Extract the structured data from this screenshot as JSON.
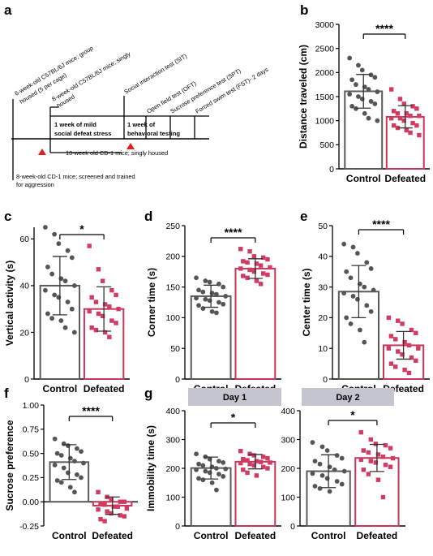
{
  "panels": {
    "a": "a",
    "b": "b",
    "c": "c",
    "d": "d",
    "e": "e",
    "f": "f",
    "g": "g"
  },
  "colors": {
    "control": "#5a5a5a",
    "defeated": "#c8375a",
    "control_dot": "#555555",
    "defeated_dot": "#d13b61",
    "day_box": "#c5c5cf",
    "marker": "#e02020"
  },
  "timeline": {
    "labels": [
      "6-week-old C57BL/6J mice; group",
      "housed (5 per cage)",
      "8-week-old C57BL/6J mice; singly",
      "housed",
      "Social interaction test (SIT)",
      "Open field test (OFT)",
      "Sucrose preference test (SPT)",
      "Forced swim test (FST)- 2 days"
    ],
    "box1": [
      "1 week of mild",
      "social defeat stress"
    ],
    "box2": [
      "1 week of",
      "behavioral testing"
    ],
    "note1": "10-week old CD-1 mice; singly housed",
    "note2": [
      "8-week-old CD-1 mice; screened and trained",
      "for aggression"
    ]
  },
  "chart_data": [
    {
      "panel": "b",
      "type": "bar",
      "categories": [
        "Control",
        "Defeated"
      ],
      "ylabel": "Distance traveled (cm)",
      "ylim": [
        0,
        3000
      ],
      "yticks": [
        0,
        500,
        1000,
        1500,
        2000,
        2500,
        3000
      ],
      "values": [
        1610,
        1080
      ],
      "error": [
        350,
        230
      ],
      "significance": "****",
      "points": [
        [
          2300,
          2150,
          2050,
          1950,
          1900,
          1850,
          1750,
          1700,
          1650,
          1600,
          1550,
          1500,
          1450,
          1400,
          1350,
          1300,
          1250,
          1150,
          1050,
          1000
        ],
        [
          1650,
          1450,
          1350,
          1300,
          1250,
          1200,
          1150,
          1150,
          1100,
          1100,
          1050,
          1050,
          1000,
          950,
          900,
          900,
          850,
          800,
          750,
          700
        ]
      ]
    },
    {
      "panel": "c",
      "type": "bar",
      "categories": [
        "Control",
        "Defeated"
      ],
      "ylabel": "Vertical activity (s)",
      "ylim": [
        0,
        65
      ],
      "yticks": [
        0,
        20,
        40,
        60
      ],
      "values": [
        40,
        30
      ],
      "error": [
        12.5,
        9.5
      ],
      "significance": "*",
      "points": [
        [
          65,
          62,
          58,
          55,
          52,
          48,
          45,
          43,
          42,
          40,
          38,
          36,
          35,
          33,
          30,
          28,
          26,
          25,
          22,
          20
        ],
        [
          57,
          47,
          42,
          38,
          36,
          35,
          33,
          32,
          31,
          30,
          29,
          28,
          27,
          25,
          24,
          22,
          21,
          20,
          18
        ]
      ]
    },
    {
      "panel": "d",
      "type": "bar",
      "categories": [
        "Control",
        "Defeated"
      ],
      "ylabel": "Corner time (s)",
      "ylim": [
        0,
        250
      ],
      "yticks": [
        0,
        50,
        100,
        150,
        200,
        250
      ],
      "values": [
        135,
        180
      ],
      "error": [
        18,
        16
      ],
      "significance": "****",
      "points": [
        [
          165,
          160,
          158,
          155,
          150,
          145,
          142,
          140,
          138,
          135,
          132,
          130,
          128,
          125,
          122,
          120,
          115,
          110,
          108
        ],
        [
          212,
          208,
          200,
          198,
          195,
          192,
          190,
          188,
          185,
          182,
          180,
          178,
          175,
          172,
          170,
          168,
          165,
          160,
          155
        ]
      ]
    },
    {
      "panel": "e",
      "type": "bar",
      "categories": [
        "Control",
        "Defeated"
      ],
      "ylabel": "Center time (s)",
      "ylim": [
        0,
        50
      ],
      "yticks": [
        0,
        10,
        20,
        30,
        40,
        50
      ],
      "values": [
        28.5,
        11
      ],
      "error": [
        8.5,
        4.5
      ],
      "significance": "****",
      "points": [
        [
          44,
          43,
          41,
          38,
          36,
          35,
          33,
          31,
          30,
          29,
          28,
          27,
          26,
          24,
          22,
          20,
          18,
          16,
          12
        ],
        [
          20,
          19,
          18,
          16,
          15,
          14,
          13,
          12,
          11,
          10,
          10,
          9,
          8,
          7,
          6,
          5,
          4,
          3,
          2
        ]
      ]
    },
    {
      "panel": "f",
      "type": "bar",
      "categories": [
        "Control",
        "Defeated"
      ],
      "ylabel": "Sucrose preference",
      "ylim": [
        -0.25,
        1.0
      ],
      "yticks": [
        "-0.25",
        "0.00",
        "0.25",
        "0.50",
        "0.75",
        "1.00"
      ],
      "values": [
        0.41,
        -0.04
      ],
      "error": [
        0.18,
        0.09
      ],
      "significance": "****",
      "points": [
        [
          0.65,
          0.6,
          0.58,
          0.55,
          0.52,
          0.5,
          0.48,
          0.45,
          0.42,
          0.4,
          0.38,
          0.35,
          0.3,
          0.28,
          0.25,
          0.22,
          0.2,
          0.15,
          0.1
        ],
        [
          0.1,
          0.05,
          0.02,
          0.0,
          0.0,
          -0.02,
          -0.03,
          -0.05,
          -0.05,
          -0.07,
          -0.08,
          -0.1,
          -0.12,
          -0.14,
          -0.15,
          -0.18,
          -0.2
        ]
      ]
    },
    {
      "panel": "g",
      "type": "bar",
      "ylabel": "Immobility time (s)",
      "ylim": [
        0,
        400
      ],
      "yticks": [
        0,
        100,
        200,
        300,
        400
      ],
      "facets": [
        {
          "title": "Day 1",
          "categories": [
            "Control",
            "Defeated"
          ],
          "values": [
            201,
            223
          ],
          "error": [
            38,
            25
          ],
          "significance": "*",
          "points": [
            [
              250,
              240,
              232,
              225,
              220,
              215,
              210,
              205,
              200,
              198,
              195,
              190,
              185,
              180,
              172,
              165,
              160,
              150,
              125
            ],
            [
              260,
              250,
              245,
              240,
              235,
              232,
              228,
              225,
              222,
              220,
              218,
              215,
              210,
              205,
              200,
              195,
              185,
              175
            ]
          ]
        },
        {
          "title": "Day 2",
          "categories": [
            "Control",
            "Defeated"
          ],
          "values": [
            190,
            236
          ],
          "error": [
            57,
            47
          ],
          "significance": "*",
          "points": [
            [
              290,
              275,
              262,
              245,
              235,
              225,
              215,
              205,
              195,
              190,
              182,
              175,
              165,
              155,
              145,
              138,
              130,
              120
            ],
            [
              325,
              300,
              285,
              280,
              270,
              262,
              255,
              248,
              240,
              235,
              230,
              225,
              220,
              212,
              205,
              195,
              180,
              160,
              100
            ]
          ]
        }
      ]
    }
  ]
}
